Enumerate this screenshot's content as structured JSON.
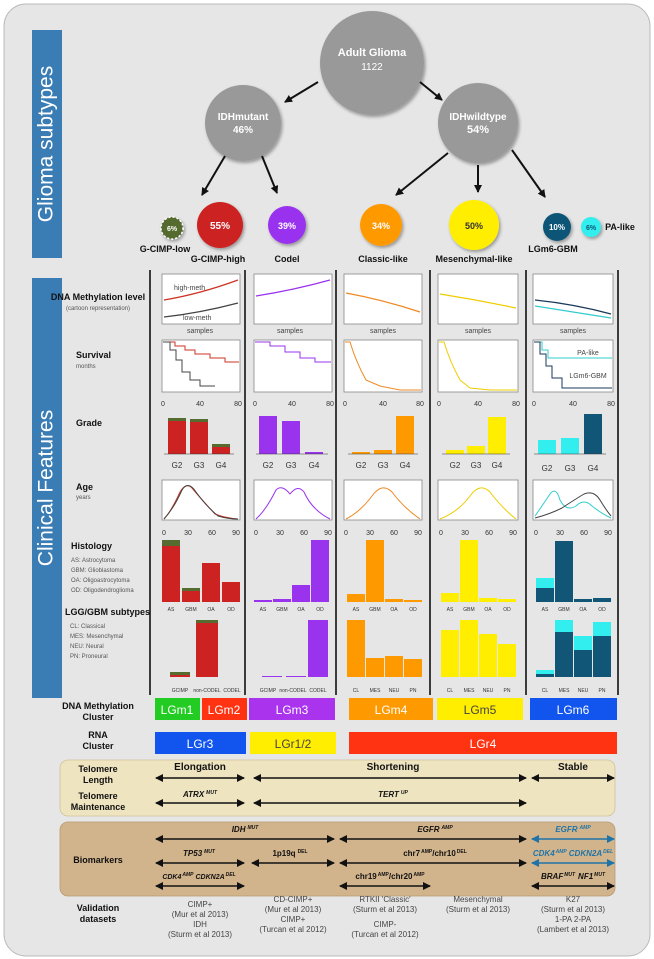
{
  "side_labels": {
    "subtypes": "Glioma subtypes",
    "clinical": "Clinical  Features"
  },
  "top": {
    "root": {
      "title": "Adult Glioma",
      "value": "1122"
    },
    "idh_mut": {
      "title": "IDHmutant",
      "value": "46%"
    },
    "idh_wt": {
      "title": "IDHwildtype",
      "value": "54%"
    }
  },
  "subtypes": [
    {
      "label": "G-CIMP-low",
      "pct": "6%",
      "color": "#556b2f"
    },
    {
      "label": "G-CIMP-high",
      "pct": "55%",
      "color": "#cc2222"
    },
    {
      "label": "Codel",
      "pct": "39%",
      "color": "#9933ee"
    },
    {
      "label": "Classic-like",
      "pct": "34%",
      "color": "#ff9900"
    },
    {
      "label": "Mesenchymal-like",
      "pct": "50%",
      "color": "#ffee00"
    },
    {
      "label": "LGm6-GBM",
      "pct": "10%",
      "color": "#115577"
    },
    {
      "label": "PA-like",
      "pct": "6%",
      "color": "#33eeee"
    }
  ],
  "rows": {
    "dna_meth": {
      "title": "DNA Methylation level",
      "sub": "(cartoon representation)"
    },
    "survival": {
      "title": "Survival",
      "sub": "months"
    },
    "grade": {
      "title": "Grade"
    },
    "age": {
      "title": "Age",
      "sub": "years"
    },
    "histology": {
      "title": "Histology",
      "notes": [
        "AS: Astrocytoma",
        "GBM: Glioblastoma",
        "OA: Oligoastrocytoma",
        "OD: Oligodendroglioma"
      ]
    },
    "lgg": {
      "title": "LGG/GBM subtypes",
      "notes": [
        "CL: Classical",
        "MES: Mesenchymal",
        "NEU: Neural",
        "PN: Proneural"
      ]
    }
  },
  "panel_text": {
    "high_meth": "high-meth",
    "low_meth": "low-meth",
    "samples": "samples",
    "pa_like": "PA-like",
    "lgm6_gbm": "LGm6-GBM",
    "surv_ticks": [
      "0",
      "40",
      "80"
    ],
    "age_ticks": [
      "0",
      "30",
      "60",
      "90"
    ],
    "grade_cats": [
      "G2",
      "G3",
      "G4"
    ],
    "hist_cats": [
      "AS",
      "GBM",
      "OA",
      "OD"
    ],
    "codel_cats": [
      "GCIMP",
      "non-CODEL",
      "CODEL"
    ],
    "lgg_cats": [
      "CL",
      "MES",
      "NEU",
      "PN"
    ]
  },
  "clusters": {
    "dna_title": "DNA  Methylation Cluster",
    "rna_title": "RNA Cluster",
    "dna": [
      {
        "label": "LGm1",
        "color": "#22cc22"
      },
      {
        "label": "LGm2",
        "color": "#ff3311"
      },
      {
        "label": "LGm3",
        "color": "#aa33ee"
      },
      {
        "label": "LGm4",
        "color": "#ff9900"
      },
      {
        "label": "LGm5",
        "color": "#ffee00"
      },
      {
        "label": "LGm6",
        "color": "#1155ee"
      }
    ],
    "rna": [
      {
        "label": "LGr3",
        "color": "#1155ee"
      },
      {
        "label": "LGr1/2",
        "color": "#ffee00"
      },
      {
        "label": "LGr4",
        "color": "#ff3311"
      }
    ]
  },
  "telomere": {
    "length_label": "Telomere Length",
    "maintenance_label": "Telomere Maintenance",
    "elongation": "Elongation",
    "shortening": "Shortening",
    "stable": "Stable",
    "atrx": "ATRX",
    "atrx_sup": "MUT",
    "tert": "TERT",
    "tert_sup": "UP"
  },
  "biomarkers": {
    "label": "Biomarkers",
    "idh": "IDH",
    "idh_sup": "MUT",
    "egfr": "EGFR",
    "egfr_sup": "AMP",
    "tp53": "TP53",
    "tp53_sup": "MUT",
    "p19q": "1p19q",
    "p19q_sup": "DEL",
    "chr7": "chr7",
    "chr7_sup": "AMP",
    "chr10": "/chr10",
    "chr10_sup": "DEL",
    "cdk4": "CDK4",
    "cdk4_sup": "AMP",
    "cdkn2a": "CDKN2A",
    "cdkn2a_sup": "DEL",
    "chr19": "chr19",
    "chr19_sup": "AMP",
    "chr20": "/chr20",
    "chr20_sup": "AMP",
    "braf": "BRAF",
    "braf_sup": "MUT",
    "nf1": "NF1",
    "nf1_sup": "MUT"
  },
  "validation": {
    "label": "Validation datasets",
    "cols": [
      [
        "CIMP+",
        "(Mur et al 2013)",
        "IDH",
        "(Sturm et al 2013)"
      ],
      [
        "CD-CIMP+",
        "(Mur et al 2013)",
        "CIMP+",
        "(Turcan et al 2012)"
      ],
      [
        "RTKII 'Classic'",
        "(Sturm et al 2013)",
        "CIMP-",
        "(Turcan et al 2012)"
      ],
      [
        "Mesenchymal",
        "(Sturm et al 2013)"
      ],
      [
        "K27",
        "(Sturm et al 2013)",
        "1-PA 2-PA",
        "(Lambert et al 2013)"
      ]
    ]
  },
  "colors": {
    "panel_bg": "#e6e6e6",
    "side_blue": "#3a7db5",
    "node_gray": "#999999",
    "tele_bg": "#efe4c0",
    "bio_bg": "#d2b48c",
    "teal_text": "#1e73a8",
    "line_red": "#cc3322",
    "line_dark": "#444444",
    "line_purple": "#9933ee",
    "line_orange": "#ee8822",
    "line_yellow": "#eecc00",
    "line_navy": "#1a3a5a",
    "line_cyan": "#33cccc"
  }
}
